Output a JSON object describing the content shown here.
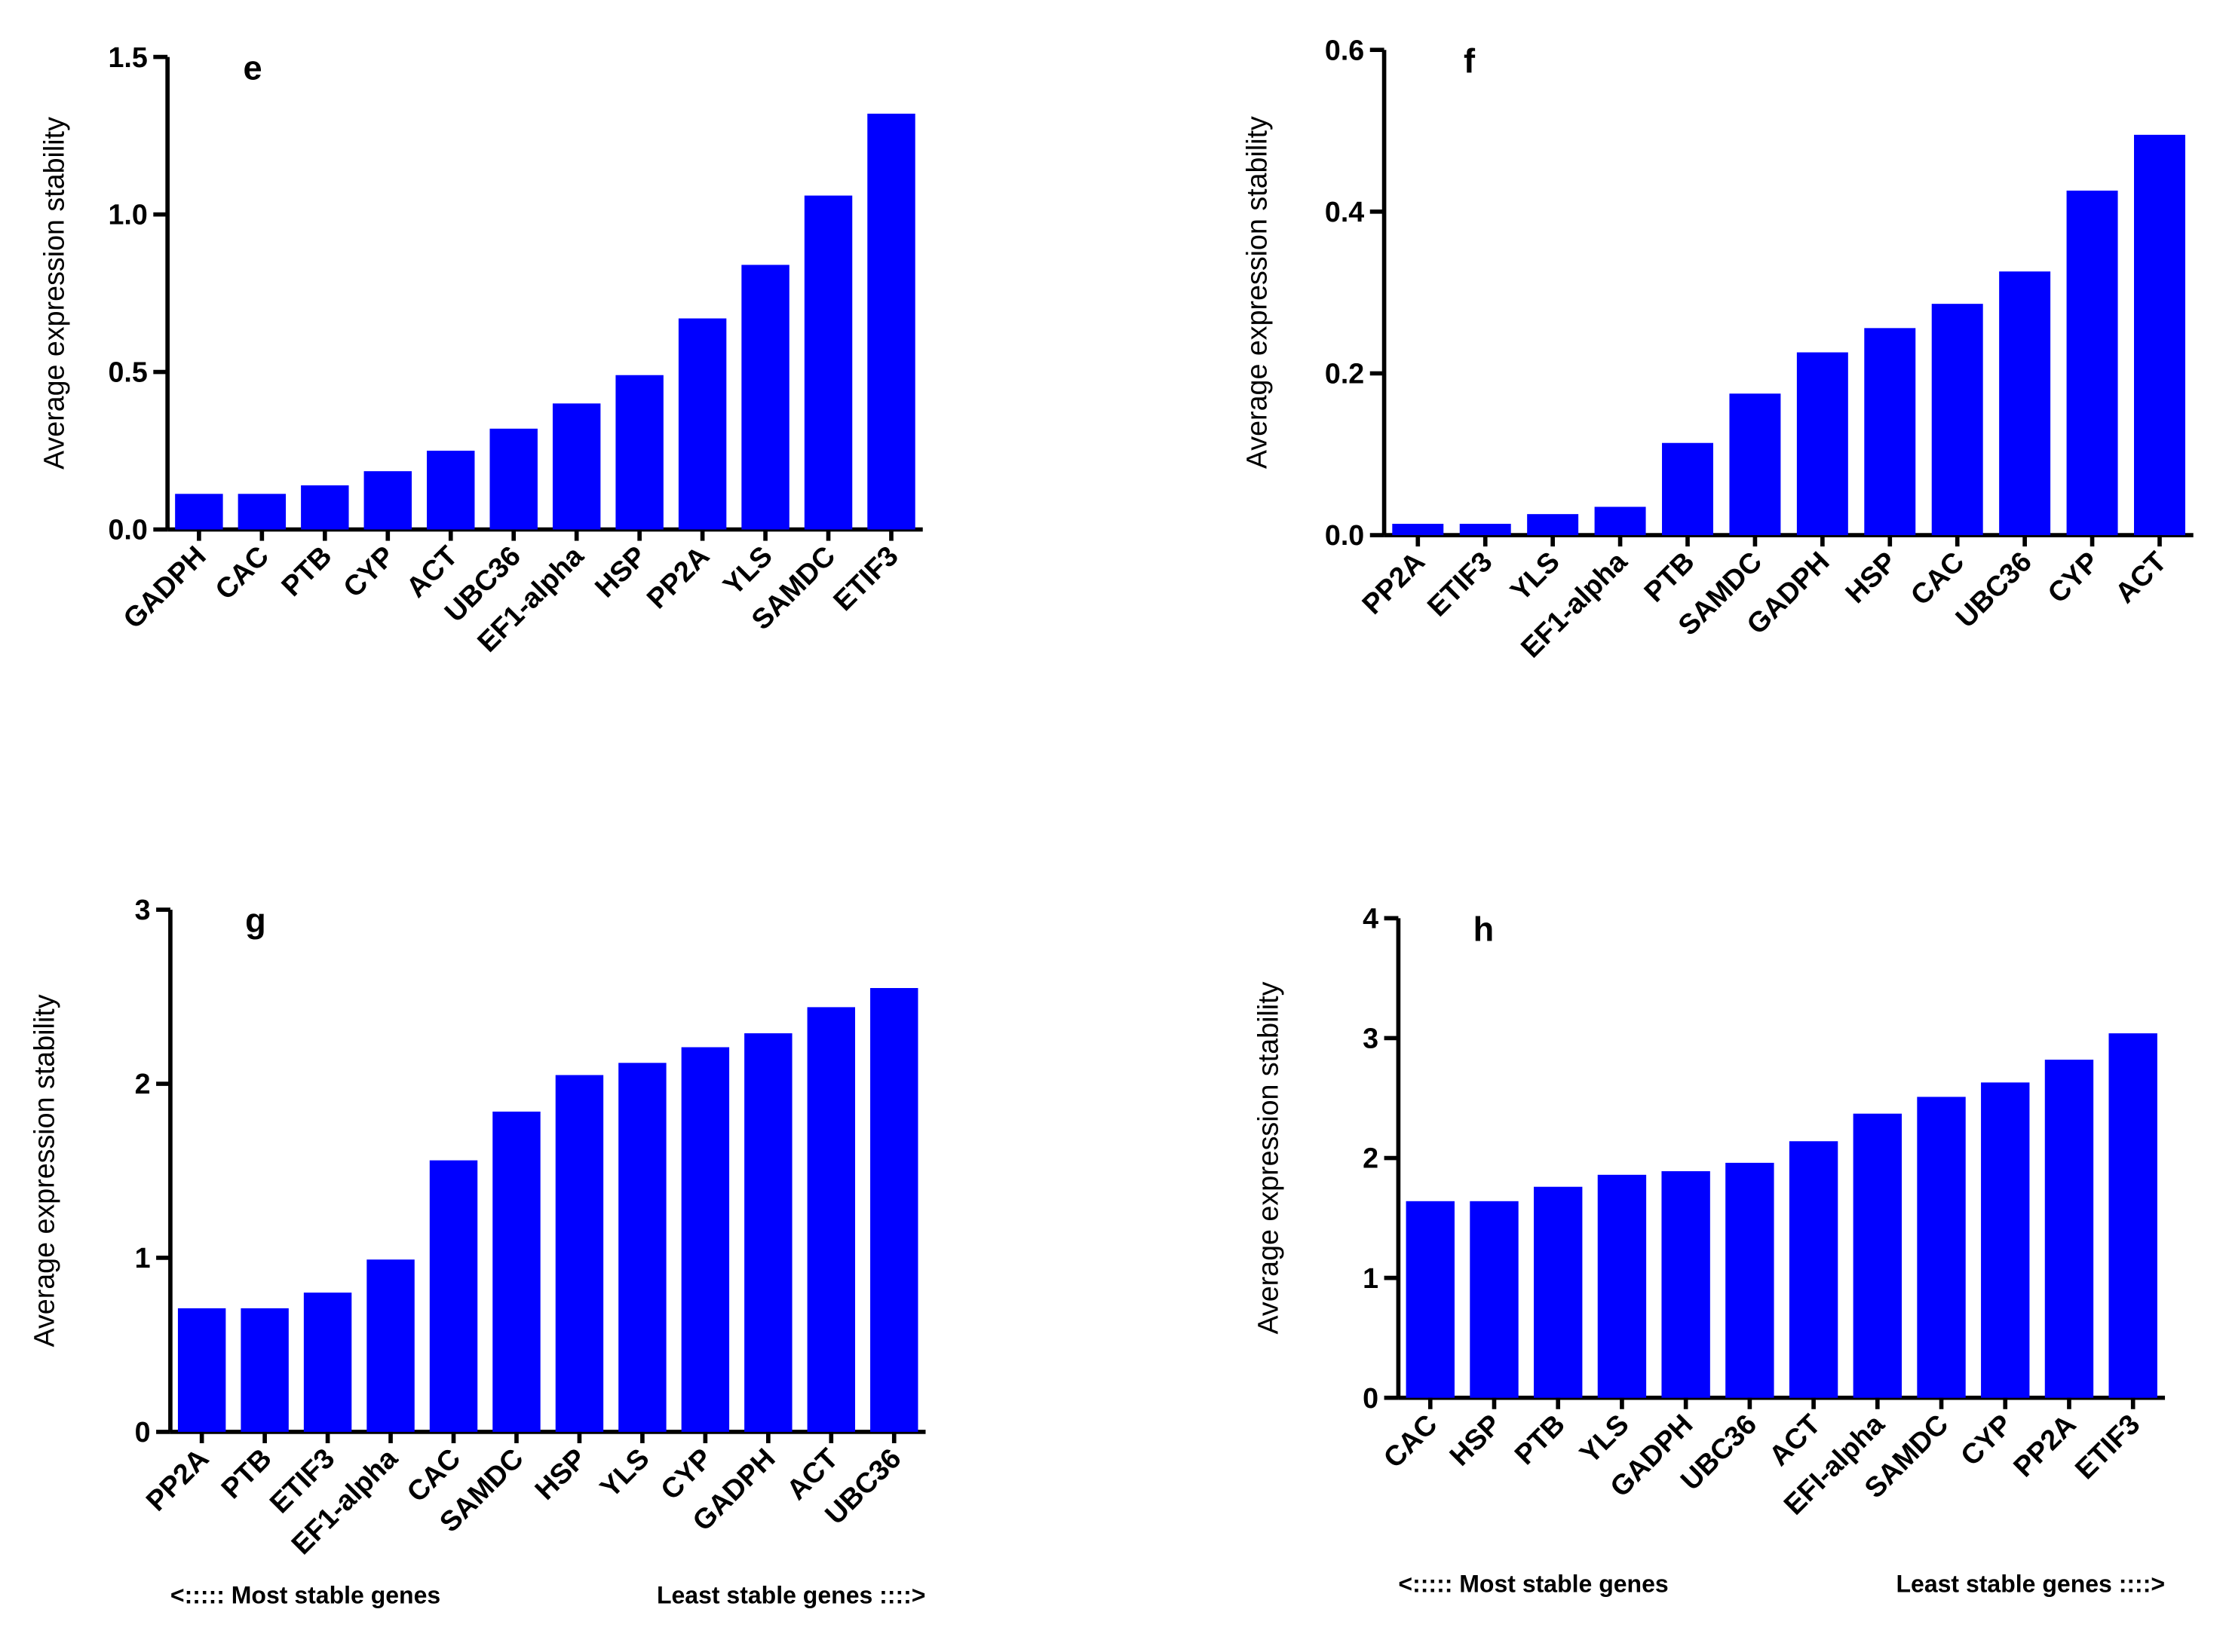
{
  "chart_data": [
    {
      "type": "bar",
      "title": "e",
      "y_label": "Average expression stability",
      "categories": [
        "GADPH",
        "CAC",
        "PTB",
        "CYP",
        "ACT",
        "UBC36",
        "EF1-alpha",
        "HSP",
        "PP2A",
        "YLS",
        "SAMDC",
        "ETIF3"
      ],
      "values": [
        0.113,
        0.113,
        0.14,
        0.185,
        0.25,
        0.32,
        0.4,
        0.49,
        0.67,
        0.84,
        1.06,
        1.32
      ],
      "color": "#0000ff",
      "ylim": [
        0,
        1.5
      ],
      "yticks": [
        {
          "value": 0,
          "label": "0.0"
        },
        0.5,
        {
          "value": 1,
          "label": "1.0"
        },
        1.5
      ]
    },
    {
      "type": "bar",
      "title": "f",
      "y_label": "Average expression stability",
      "categories": [
        "PP2A",
        "ETIF3",
        "YLS",
        "EF1-alpha",
        "PTB",
        "SAMDC",
        "GADPH",
        "HSP",
        "CAC",
        "UBC36",
        "CYP",
        "ACT"
      ],
      "values": [
        0.014,
        0.014,
        0.026,
        0.035,
        0.114,
        0.175,
        0.226,
        0.256,
        0.286,
        0.326,
        0.426,
        0.495
      ],
      "color": "#0000ff",
      "ylim": [
        0,
        0.6
      ],
      "yticks": [
        {
          "value": 0,
          "label": "0.0"
        },
        0.2,
        0.4,
        0.6
      ]
    },
    {
      "type": "bar",
      "title": "g",
      "y_label": "Average expression stability",
      "categories": [
        "PP2A",
        "PTB",
        "ETIF3",
        "EF1-alpha",
        "CAC",
        "SAMDC",
        "HSP",
        "YLS",
        "CYP",
        "GADPH",
        "ACT",
        "UBC36"
      ],
      "values": [
        0.71,
        0.71,
        0.8,
        0.99,
        1.56,
        1.84,
        2.05,
        2.12,
        2.21,
        2.29,
        2.44,
        2.55
      ],
      "color": "#0000ff",
      "ylim": [
        0,
        3
      ],
      "yticks": [
        0,
        1,
        2,
        3
      ],
      "annotations": [
        "<::::: Most stable genes",
        "Least stable genes ::::>"
      ]
    },
    {
      "type": "bar",
      "title": "h",
      "y_label": "Average expression stability",
      "categories": [
        "CAC",
        "HSP",
        "PTB",
        "YLS",
        "GADPH",
        "UBC36",
        "ACT",
        "EFI-alpha",
        "SAMDC",
        "CYP",
        "PP2A",
        "ETIF3"
      ],
      "values": [
        1.64,
        1.64,
        1.76,
        1.86,
        1.89,
        1.96,
        2.14,
        2.37,
        2.51,
        2.63,
        2.82,
        3.04
      ],
      "color": "#0000ff",
      "ylim": [
        0,
        4
      ],
      "yticks": [
        0,
        1,
        2,
        3,
        4
      ],
      "annotations": [
        "<::::: Most stable genes",
        "Least stable genes ::::>"
      ]
    }
  ]
}
